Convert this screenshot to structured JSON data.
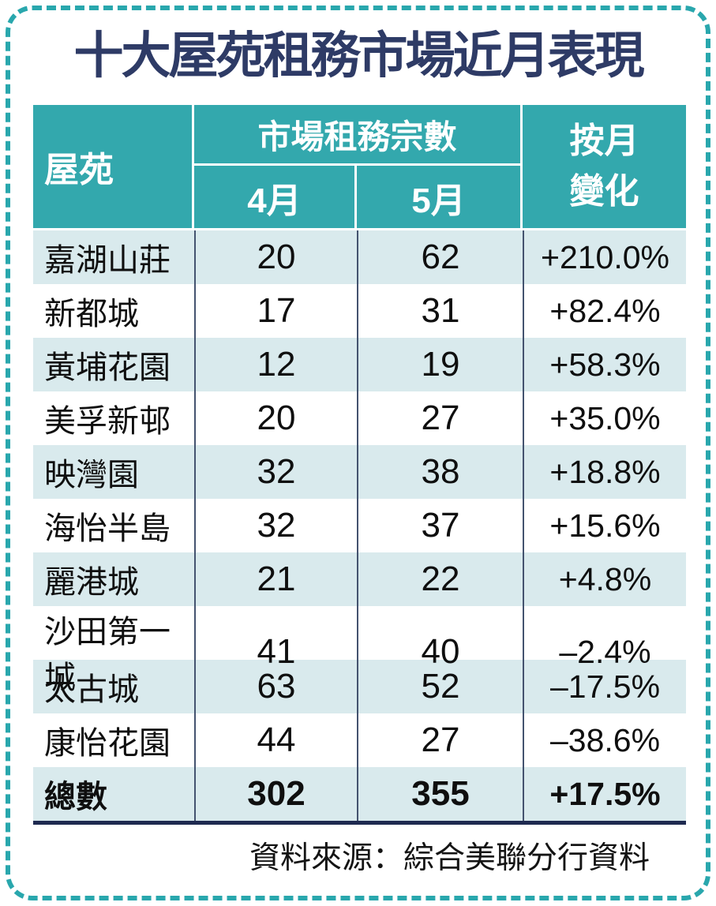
{
  "page": {
    "title": "十大屋苑租務市場近月表現",
    "source_note": "資料來源：綜合美聯分行資料"
  },
  "table": {
    "headers": {
      "estate": "屋苑",
      "rental_count_group": "市場租務宗數",
      "april": "4月",
      "may": "5月",
      "mom_change": "按月\n變化"
    },
    "rows": [
      {
        "name": "嘉湖山莊",
        "apr": "20",
        "may": "62",
        "change": "+210.0%"
      },
      {
        "name": "新都城",
        "apr": "17",
        "may": "31",
        "change": "+82.4%"
      },
      {
        "name": "黃埔花園",
        "apr": "12",
        "may": "19",
        "change": "+58.3%"
      },
      {
        "name": "美孚新邨",
        "apr": "20",
        "may": "27",
        "change": "+35.0%"
      },
      {
        "name": "映灣園",
        "apr": "32",
        "may": "38",
        "change": "+18.8%"
      },
      {
        "name": "海怡半島",
        "apr": "32",
        "may": "37",
        "change": "+15.6%"
      },
      {
        "name": "麗港城",
        "apr": "21",
        "may": "22",
        "change": "+4.8%"
      },
      {
        "name": "沙田第一城",
        "apr": "41",
        "may": "40",
        "change": "–2.4%"
      },
      {
        "name": "太古城",
        "apr": "63",
        "may": "52",
        "change": "–17.5%"
      },
      {
        "name": "康怡花園",
        "apr": "44",
        "may": "27",
        "change": "–38.6%"
      },
      {
        "name": "總數",
        "apr": "302",
        "may": "355",
        "change": "+17.5%",
        "total": true
      }
    ]
  },
  "colors": {
    "header_teal": "#33a8ad",
    "row_light_teal": "#d9eaed",
    "row_white": "#ffffff",
    "border_dash_teal": "#29a7ad",
    "title_navy": "#2e3b66",
    "divider_navy": "#44536f",
    "bottom_rule_navy": "#1e2a50",
    "body_text": "#0f0f0f"
  },
  "chart_data": {
    "type": "table",
    "title": "十大屋苑租務市場近月表現",
    "columns": [
      "屋苑",
      "市場租務宗數 4月",
      "市場租務宗數 5月",
      "按月變化"
    ],
    "rows": [
      [
        "嘉湖山莊",
        20,
        62,
        "+210.0%"
      ],
      [
        "新都城",
        17,
        31,
        "+82.4%"
      ],
      [
        "黃埔花園",
        12,
        19,
        "+58.3%"
      ],
      [
        "美孚新邨",
        20,
        27,
        "+35.0%"
      ],
      [
        "映灣園",
        32,
        38,
        "+18.8%"
      ],
      [
        "海怡半島",
        32,
        37,
        "+15.6%"
      ],
      [
        "麗港城",
        21,
        22,
        "+4.8%"
      ],
      [
        "沙田第一城",
        41,
        40,
        "-2.4%"
      ],
      [
        "太古城",
        63,
        52,
        "-17.5%"
      ],
      [
        "康怡花園",
        44,
        27,
        "-38.6%"
      ]
    ],
    "total_row": [
      "總數",
      302,
      355,
      "+17.5%"
    ],
    "source": "資料來源：綜合美聯分行資料",
    "legend_position": "none",
    "grid": "column-dividers-only"
  }
}
